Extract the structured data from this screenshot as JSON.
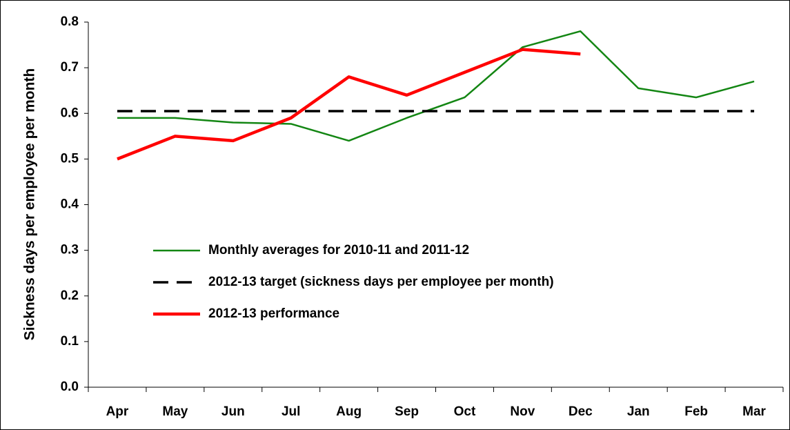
{
  "chart_data": {
    "type": "line",
    "y_label": "Sickness days per employee per month",
    "categories": [
      "Apr",
      "May",
      "Jun",
      "Jul",
      "Aug",
      "Sep",
      "Oct",
      "Nov",
      "Dec",
      "Jan",
      "Feb",
      "Mar"
    ],
    "series": [
      {
        "name": "Monthly averages for 2010-11 and 2011-12",
        "color": "#138613",
        "style": "solid",
        "values": [
          0.59,
          0.59,
          0.58,
          0.577,
          0.54,
          0.59,
          0.635,
          0.745,
          0.78,
          0.655,
          0.635,
          0.67
        ]
      },
      {
        "name": "2012-13 target (sickness days per employee per month)",
        "color": "#000000",
        "style": "dashed",
        "values": [
          0.605,
          0.605,
          0.605,
          0.605,
          0.605,
          0.605,
          0.605,
          0.605,
          0.605,
          0.605,
          0.605,
          0.605
        ]
      },
      {
        "name": "2012-13 performance",
        "color": "#ff0000",
        "style": "thick",
        "values": [
          0.5,
          0.55,
          0.54,
          0.59,
          0.68,
          0.64,
          0.69,
          0.74,
          0.73,
          null,
          null,
          null
        ]
      }
    ],
    "ylim": [
      0,
      0.8
    ],
    "yticks": [
      {
        "value": 0,
        "label": "0.0"
      },
      0.1,
      0.2,
      0.3,
      0.4,
      0.5,
      0.6,
      0.7,
      0.8
    ],
    "grid": false,
    "legend": "left"
  }
}
